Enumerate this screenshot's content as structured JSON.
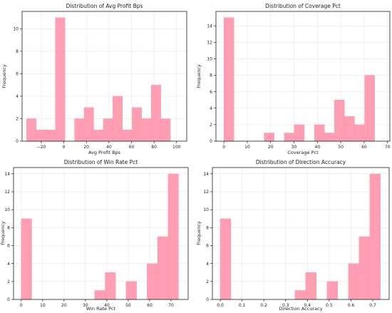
{
  "colors": {
    "bar": "#ff9eb3",
    "bar_edge": "#ff8ea7",
    "grid": "#e6e6e6"
  },
  "chart_data": [
    {
      "type": "bar",
      "title": "Distribution of Avg Profit Bps",
      "xlabel": "Avg Profit Bps",
      "ylabel": "Frequency",
      "grid": true,
      "xlim": [
        -37,
        109
      ],
      "ylim": [
        0,
        11.55
      ],
      "xticks": [
        -20,
        0,
        20,
        40,
        60,
        80,
        100
      ],
      "yticks": [
        0,
        2,
        4,
        6,
        8,
        10
      ],
      "bins": [
        {
          "x0": -33,
          "x1": -24.5,
          "count": 2
        },
        {
          "x0": -24.5,
          "x1": -16,
          "count": 1
        },
        {
          "x0": -16,
          "x1": -7.5,
          "count": 1
        },
        {
          "x0": -7.5,
          "x1": 1,
          "count": 11
        },
        {
          "x0": 1,
          "x1": 9.5,
          "count": 0
        },
        {
          "x0": 9.5,
          "x1": 18,
          "count": 2
        },
        {
          "x0": 18,
          "x1": 26.5,
          "count": 3
        },
        {
          "x0": 26.5,
          "x1": 35,
          "count": 1
        },
        {
          "x0": 35,
          "x1": 43.5,
          "count": 2
        },
        {
          "x0": 43.5,
          "x1": 52,
          "count": 4
        },
        {
          "x0": 52,
          "x1": 60.5,
          "count": 1
        },
        {
          "x0": 60.5,
          "x1": 69,
          "count": 3
        },
        {
          "x0": 69,
          "x1": 77.5,
          "count": 2
        },
        {
          "x0": 77.5,
          "x1": 86,
          "count": 5
        },
        {
          "x0": 86,
          "x1": 94.5,
          "count": 2
        }
      ]
    },
    {
      "type": "bar",
      "title": "Distribution of Coverage Pct",
      "xlabel": "Coverage Pct",
      "ylabel": "Frequency",
      "grid": true,
      "xlim": [
        -3.4,
        71
      ],
      "ylim": [
        0,
        15.75
      ],
      "xticks": [
        0,
        10,
        20,
        30,
        40,
        50,
        60,
        70
      ],
      "yticks": [
        0,
        2,
        4,
        6,
        8,
        10,
        12,
        14
      ],
      "bins": [
        {
          "x0": 0,
          "x1": 4.3,
          "count": 15
        },
        {
          "x0": 4.3,
          "x1": 8.6,
          "count": 0
        },
        {
          "x0": 8.6,
          "x1": 12.9,
          "count": 0
        },
        {
          "x0": 12.9,
          "x1": 17.2,
          "count": 0
        },
        {
          "x0": 17.2,
          "x1": 21.5,
          "count": 1
        },
        {
          "x0": 21.5,
          "x1": 25.8,
          "count": 0
        },
        {
          "x0": 25.8,
          "x1": 30.1,
          "count": 1
        },
        {
          "x0": 30.1,
          "x1": 34.4,
          "count": 2
        },
        {
          "x0": 34.4,
          "x1": 38.7,
          "count": 0
        },
        {
          "x0": 38.7,
          "x1": 43,
          "count": 2
        },
        {
          "x0": 43,
          "x1": 47.3,
          "count": 1
        },
        {
          "x0": 47.3,
          "x1": 51.6,
          "count": 5
        },
        {
          "x0": 51.6,
          "x1": 55.9,
          "count": 3
        },
        {
          "x0": 55.9,
          "x1": 60.2,
          "count": 2
        },
        {
          "x0": 60.2,
          "x1": 64.5,
          "count": 8
        }
      ]
    },
    {
      "type": "bar",
      "title": "Distribution of Win Rate Pct",
      "xlabel": "Win Rate Pct",
      "ylabel": "Frequency",
      "grid": true,
      "xlim": [
        -3.6,
        78
      ],
      "ylim": [
        0,
        14.7
      ],
      "xticks": [
        0,
        10,
        20,
        30,
        40,
        50,
        60,
        70
      ],
      "yticks": [
        0,
        2,
        4,
        6,
        8,
        10,
        12,
        14
      ],
      "bins": [
        {
          "x0": 0,
          "x1": 4.9,
          "count": 9
        },
        {
          "x0": 4.9,
          "x1": 9.8,
          "count": 0
        },
        {
          "x0": 9.8,
          "x1": 14.7,
          "count": 0
        },
        {
          "x0": 14.7,
          "x1": 19.6,
          "count": 0
        },
        {
          "x0": 19.6,
          "x1": 24.5,
          "count": 0
        },
        {
          "x0": 24.5,
          "x1": 29.4,
          "count": 0
        },
        {
          "x0": 29.4,
          "x1": 34.3,
          "count": 0
        },
        {
          "x0": 34.3,
          "x1": 39.2,
          "count": 1
        },
        {
          "x0": 39.2,
          "x1": 44.1,
          "count": 3
        },
        {
          "x0": 44.1,
          "x1": 49,
          "count": 0
        },
        {
          "x0": 49,
          "x1": 53.9,
          "count": 2
        },
        {
          "x0": 53.9,
          "x1": 58.8,
          "count": 0
        },
        {
          "x0": 58.8,
          "x1": 63.7,
          "count": 4
        },
        {
          "x0": 63.7,
          "x1": 68.6,
          "count": 7
        },
        {
          "x0": 68.6,
          "x1": 73.5,
          "count": 14
        }
      ]
    },
    {
      "type": "bar",
      "title": "Distribution of Direction Accuracy",
      "xlabel": "Direction Accuracy",
      "ylabel": "Frequency",
      "grid": true,
      "xlim": [
        -0.036,
        0.775
      ],
      "ylim": [
        0,
        14.7
      ],
      "xticks": [
        0.0,
        0.1,
        0.2,
        0.3,
        0.4,
        0.5,
        0.6,
        0.7
      ],
      "ytick_format": "0.0",
      "yticks": [
        0,
        2,
        4,
        6,
        8,
        10,
        12,
        14
      ],
      "bins": [
        {
          "x0": 0,
          "x1": 0.049,
          "count": 9
        },
        {
          "x0": 0.049,
          "x1": 0.098,
          "count": 0
        },
        {
          "x0": 0.098,
          "x1": 0.147,
          "count": 0
        },
        {
          "x0": 0.147,
          "x1": 0.196,
          "count": 0
        },
        {
          "x0": 0.196,
          "x1": 0.245,
          "count": 0
        },
        {
          "x0": 0.245,
          "x1": 0.294,
          "count": 0
        },
        {
          "x0": 0.294,
          "x1": 0.343,
          "count": 0
        },
        {
          "x0": 0.343,
          "x1": 0.392,
          "count": 1
        },
        {
          "x0": 0.392,
          "x1": 0.441,
          "count": 3
        },
        {
          "x0": 0.441,
          "x1": 0.49,
          "count": 0
        },
        {
          "x0": 0.49,
          "x1": 0.539,
          "count": 2
        },
        {
          "x0": 0.539,
          "x1": 0.588,
          "count": 0
        },
        {
          "x0": 0.588,
          "x1": 0.637,
          "count": 4
        },
        {
          "x0": 0.637,
          "x1": 0.686,
          "count": 7
        },
        {
          "x0": 0.686,
          "x1": 0.735,
          "count": 14
        }
      ]
    }
  ]
}
